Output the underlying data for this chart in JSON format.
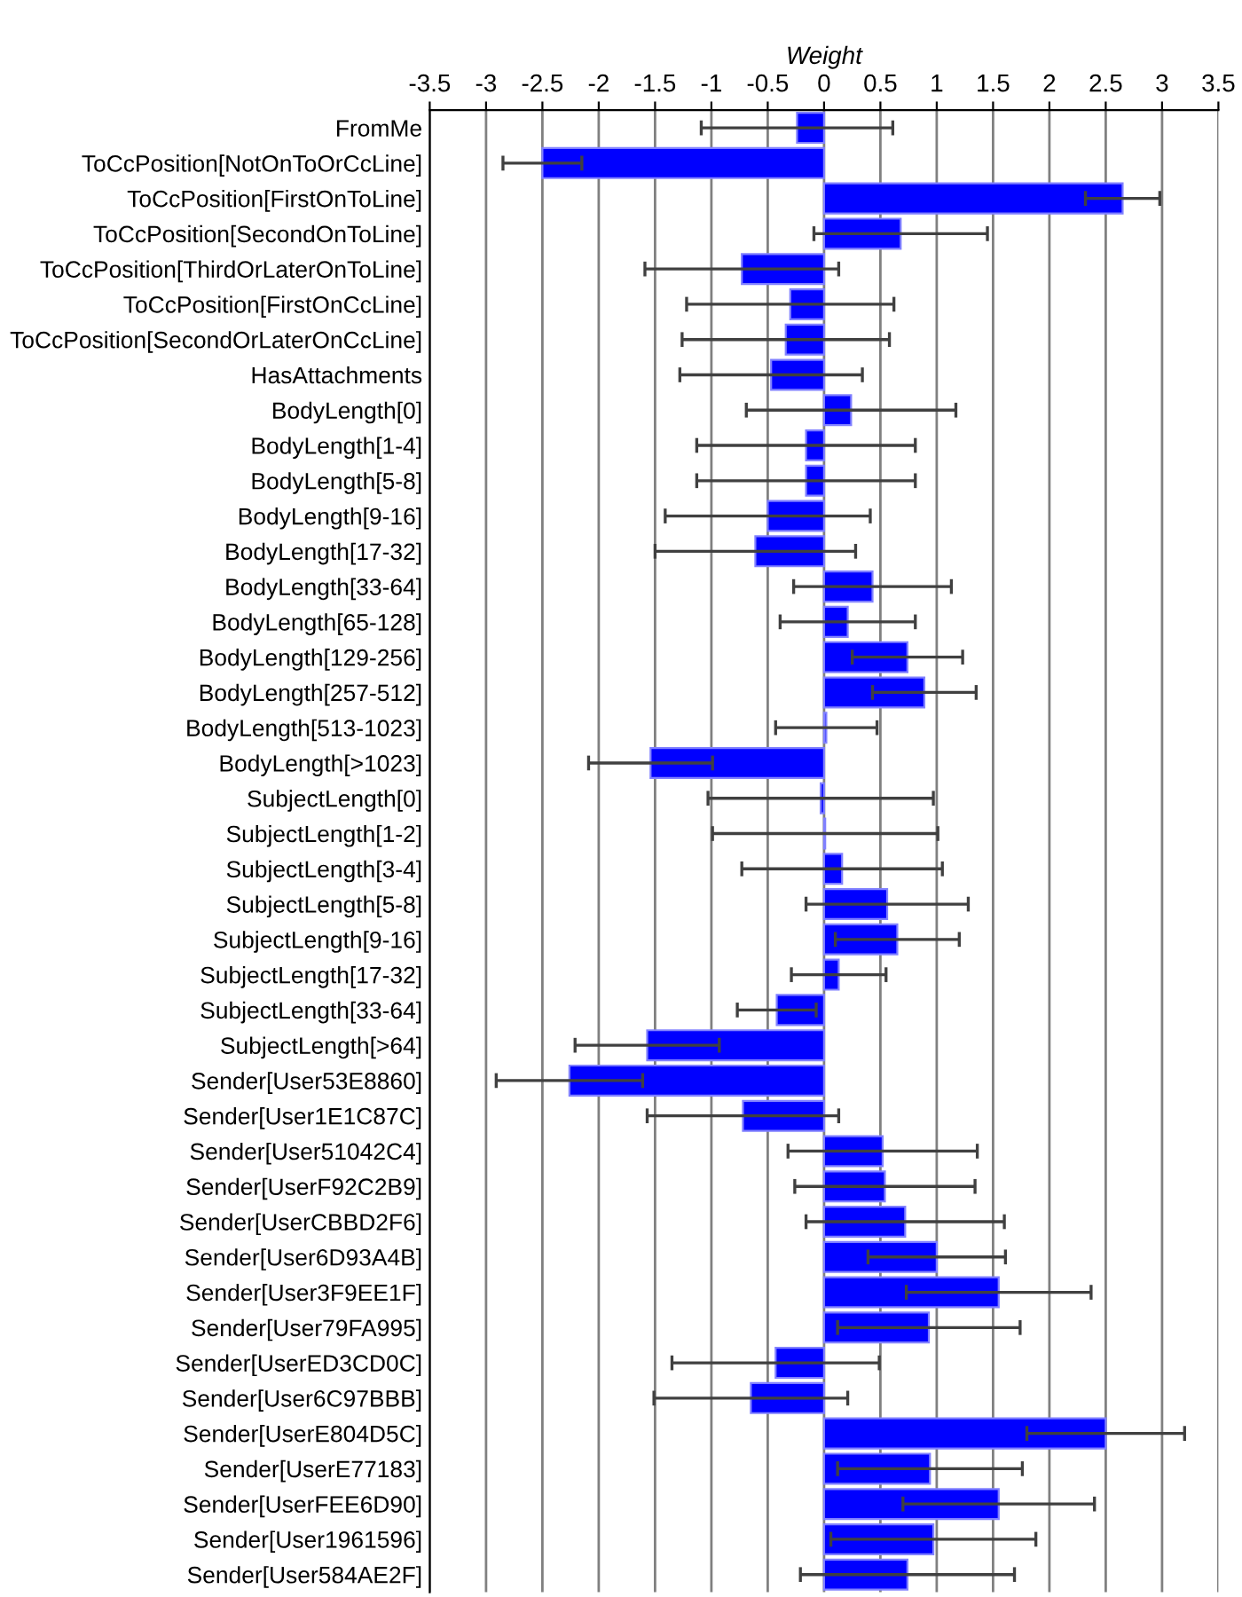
{
  "chart_data": {
    "type": "bar",
    "orientation": "horizontal",
    "xlabel": "Weight",
    "categories": [
      "FromMe",
      "ToCcPosition[NotOnToOrCcLine]",
      "ToCcPosition[FirstOnToLine]",
      "ToCcPosition[SecondOnToLine]",
      "ToCcPosition[ThirdOrLaterOnToLine]",
      "ToCcPosition[FirstOnCcLine]",
      "ToCcPosition[SecondOrLaterOnCcLine]",
      "HasAttachments",
      "BodyLength[0]",
      "BodyLength[1-4]",
      "BodyLength[5-8]",
      "BodyLength[9-16]",
      "BodyLength[17-32]",
      "BodyLength[33-64]",
      "BodyLength[65-128]",
      "BodyLength[129-256]",
      "BodyLength[257-512]",
      "BodyLength[513-1023]",
      "BodyLength[>1023]",
      "SubjectLength[0]",
      "SubjectLength[1-2]",
      "SubjectLength[3-4]",
      "SubjectLength[5-8]",
      "SubjectLength[9-16]",
      "SubjectLength[17-32]",
      "SubjectLength[33-64]",
      "SubjectLength[>64]",
      "Sender[User53E8860]",
      "Sender[User1E1C87C]",
      "Sender[User51042C4]",
      "Sender[UserF92C2B9]",
      "Sender[UserCBBD2F6]",
      "Sender[User6D93A4B]",
      "Sender[User3F9EE1F]",
      "Sender[User79FA995]",
      "Sender[UserED3CD0C]",
      "Sender[User6C97BBB]",
      "Sender[UserE804D5C]",
      "Sender[UserE77183]",
      "Sender[UserFEE6D90]",
      "Sender[User1961596]",
      "Sender[User584AE2F]"
    ],
    "series": [
      {
        "color": "#0000ff",
        "values": [
          -0.24,
          -2.5,
          2.65,
          0.68,
          -0.73,
          -0.3,
          -0.34,
          -0.47,
          0.24,
          -0.16,
          -0.16,
          -0.5,
          -0.61,
          0.43,
          0.21,
          0.74,
          0.89,
          0.02,
          -1.54,
          -0.03,
          0.01,
          0.16,
          0.56,
          0.65,
          0.13,
          -0.42,
          -1.57,
          -2.26,
          -0.72,
          0.52,
          0.54,
          0.72,
          1.0,
          1.55,
          0.93,
          -0.43,
          -0.65,
          2.5,
          0.94,
          1.55,
          0.97,
          0.74
        ],
        "errors": [
          0.85,
          0.35,
          0.33,
          0.77,
          0.86,
          0.92,
          0.92,
          0.81,
          0.93,
          0.97,
          0.97,
          0.91,
          0.89,
          0.7,
          0.6,
          0.49,
          0.46,
          0.45,
          0.55,
          1.0,
          1.0,
          0.89,
          0.72,
          0.55,
          0.42,
          0.35,
          0.64,
          0.65,
          0.85,
          0.84,
          0.8,
          0.88,
          0.61,
          0.82,
          0.81,
          0.92,
          0.86,
          0.7,
          0.82,
          0.85,
          0.91,
          0.95
        ]
      }
    ],
    "xlim": [
      -3.5,
      3.5
    ],
    "xticks": [
      -3.5,
      -3,
      -2.5,
      -2,
      -1.5,
      -1,
      -0.5,
      0,
      0.5,
      1,
      1.5,
      2,
      2.5,
      3,
      3.5
    ],
    "grid": "x",
    "legend": false
  }
}
